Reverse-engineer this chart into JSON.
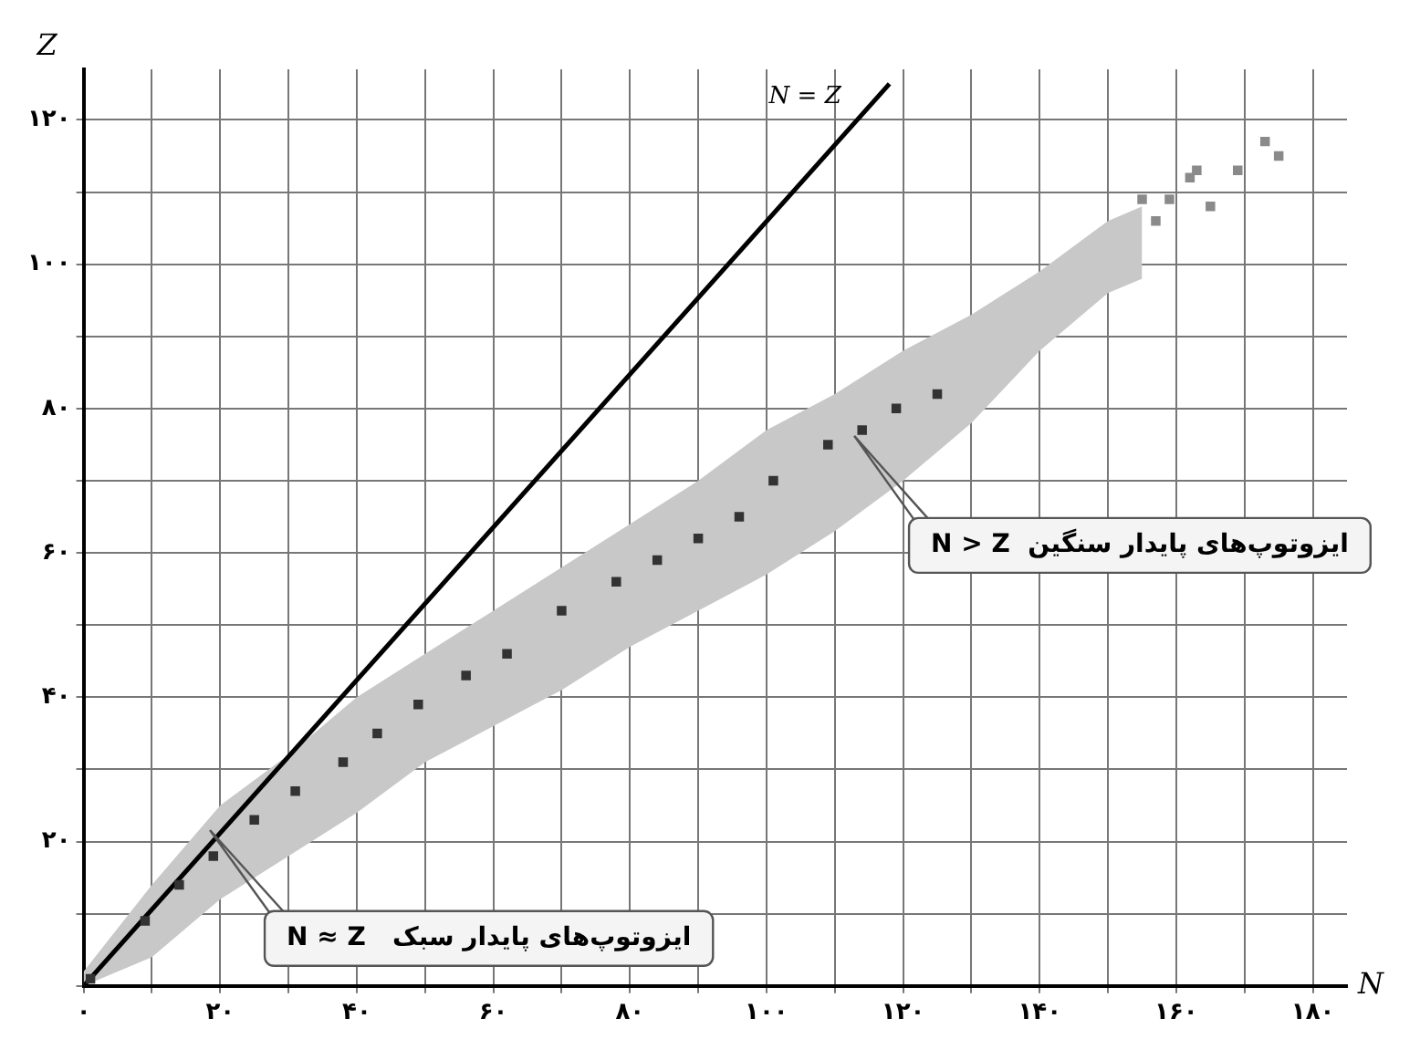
{
  "chart_data": {
    "type": "scatter",
    "xlabel": "N",
    "ylabel": "Z",
    "xlim": [
      0,
      185
    ],
    "ylim": [
      0,
      127
    ],
    "xticks": [
      {
        "value": 0,
        "label": "۰"
      },
      {
        "value": 10,
        "label": null
      },
      {
        "value": 20,
        "label": "۲۰"
      },
      {
        "value": 30,
        "label": null
      },
      {
        "value": 40,
        "label": "۴۰"
      },
      {
        "value": 50,
        "label": null
      },
      {
        "value": 60,
        "label": "۶۰"
      },
      {
        "value": 70,
        "label": null
      },
      {
        "value": 80,
        "label": "۸۰"
      },
      {
        "value": 90,
        "label": null
      },
      {
        "value": 100,
        "label": "۱۰۰"
      },
      {
        "value": 110,
        "label": null
      },
      {
        "value": 120,
        "label": "۱۲۰"
      },
      {
        "value": 130,
        "label": null
      },
      {
        "value": 140,
        "label": "۱۴۰"
      },
      {
        "value": 150,
        "label": null
      },
      {
        "value": 160,
        "label": "۱۶۰"
      },
      {
        "value": 170,
        "label": null
      },
      {
        "value": 180,
        "label": "۱۸۰"
      }
    ],
    "yticks": [
      {
        "value": 0,
        "label": null
      },
      {
        "value": 10,
        "label": null
      },
      {
        "value": 20,
        "label": "۲۰"
      },
      {
        "value": 30,
        "label": null
      },
      {
        "value": 40,
        "label": "۴۰"
      },
      {
        "value": 50,
        "label": null
      },
      {
        "value": 60,
        "label": "۶۰"
      },
      {
        "value": 70,
        "label": null
      },
      {
        "value": 80,
        "label": "۸۰"
      },
      {
        "value": 90,
        "label": null
      },
      {
        "value": 100,
        "label": "۱۰۰"
      },
      {
        "value": 110,
        "label": null
      },
      {
        "value": 120,
        "label": "۱۲۰"
      }
    ],
    "grid": true,
    "legend": false,
    "series": [
      {
        "type": "line",
        "color": "#c8c8c8",
        "x": [
          0,
          10,
          20,
          30,
          40,
          50,
          60,
          70,
          80,
          90,
          100,
          110,
          120,
          130,
          140,
          150,
          155
        ],
        "values": [
          null,
          null,
          null,
          null,
          null,
          null,
          null,
          null,
          null,
          null,
          null,
          null,
          null,
          null,
          null,
          null,
          null
        ],
        "lower": [
          0,
          4,
          12,
          18,
          24,
          31,
          36,
          41,
          47,
          52,
          57,
          63,
          70,
          78,
          88,
          96,
          98
        ],
        "upper": [
          2,
          14,
          25,
          32,
          40,
          46,
          52,
          58,
          64,
          70,
          77,
          82,
          88,
          93,
          99,
          106,
          108
        ],
        "marker": "none"
      },
      {
        "color": "#8a8a8a",
        "x": [
          155,
          157,
          159,
          162,
          163,
          165,
          169,
          173,
          175
        ],
        "values": [
          109,
          106,
          109,
          112,
          113,
          108,
          113,
          117,
          115
        ],
        "marker": "square"
      },
      {
        "color": "#333333",
        "x": [
          1,
          9,
          14,
          19,
          25,
          31,
          38,
          43,
          49,
          56,
          62,
          70,
          78,
          84,
          90,
          96,
          101,
          109,
          114,
          119,
          125
        ],
        "values": [
          1,
          9,
          14,
          18,
          23,
          27,
          31,
          35,
          39,
          43,
          46,
          52,
          56,
          59,
          62,
          65,
          70,
          75,
          77,
          80,
          82
        ],
        "marker": "square"
      },
      {
        "type": "line",
        "color": "#000000",
        "x": [
          0,
          118
        ],
        "values": [
          0,
          125
        ],
        "marker": "none",
        "line_style": "solid"
      }
    ],
    "annotations": [
      {
        "text": "N = Z",
        "x": 112,
        "y": 121
      },
      "N > Z  ایزوتوپ‌های پایدار سنگین",
      "N ≈ Z   ایزوتوپ‌های پایدار سبک"
    ]
  }
}
